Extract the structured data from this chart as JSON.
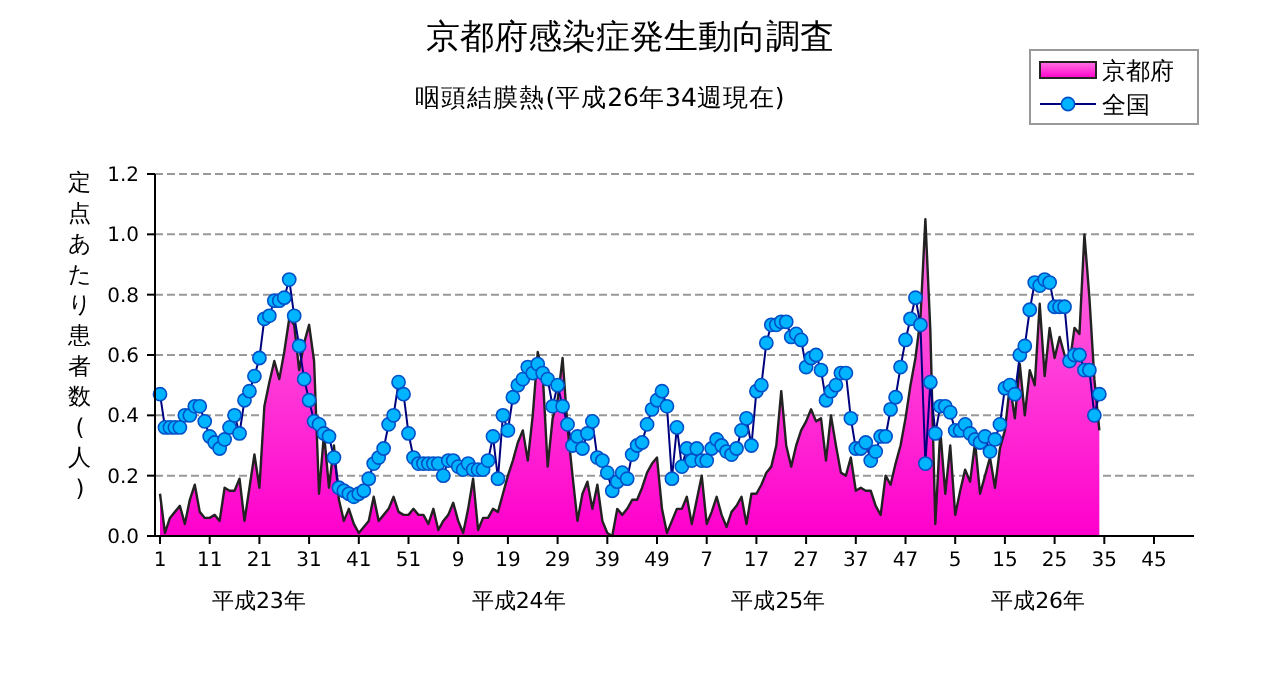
{
  "chart_data": {
    "type": "line",
    "title": "京都府感染症発生動向調査",
    "subtitle": "咽頭結膜熱(平成26年34週現在)",
    "ylabel": "定点あたり患者数(人)",
    "categories": [
      "1",
      null,
      null,
      null,
      null,
      null,
      null,
      null,
      null,
      null,
      "11",
      null,
      null,
      null,
      null,
      null,
      null,
      null,
      null,
      null,
      "21",
      null,
      null,
      null,
      null,
      null,
      null,
      null,
      null,
      null,
      "31",
      null,
      null,
      null,
      null,
      null,
      null,
      null,
      null,
      null,
      "41",
      null,
      null,
      null,
      null,
      null,
      null,
      null,
      null,
      null,
      "51",
      null,
      null,
      null,
      null,
      null,
      null,
      null,
      null,
      null,
      "9",
      null,
      null,
      null,
      null,
      null,
      null,
      null,
      null,
      null,
      "19",
      null,
      null,
      null,
      null,
      null,
      null,
      null,
      null,
      null,
      "29",
      null,
      null,
      null,
      null,
      null,
      null,
      null,
      null,
      null,
      "39",
      null,
      null,
      null,
      null,
      null,
      null,
      null,
      null,
      null,
      "49",
      null,
      null,
      null,
      null,
      null,
      null,
      null,
      null,
      null,
      "7",
      null,
      null,
      null,
      null,
      null,
      null,
      null,
      null,
      null,
      "17",
      null,
      null,
      null,
      null,
      null,
      null,
      null,
      null,
      null,
      "27",
      null,
      null,
      null,
      null,
      null,
      null,
      null,
      null,
      null,
      "37",
      null,
      null,
      null,
      null,
      null,
      null,
      null,
      null,
      null,
      "47",
      null,
      null,
      null,
      null,
      null,
      null,
      null,
      null,
      null,
      "5",
      null,
      null,
      null,
      null,
      null,
      null,
      null,
      null,
      null,
      "15",
      null,
      null,
      null,
      null,
      null,
      null,
      null,
      null,
      null,
      "25",
      null,
      null,
      null,
      null,
      null,
      null,
      null,
      null,
      null,
      "35",
      null,
      null,
      null,
      null,
      null,
      null,
      null,
      null,
      null,
      "45",
      null,
      null,
      null,
      null,
      null,
      null,
      null
    ],
    "ylim": [
      0,
      1.2
    ],
    "yticks": [
      {
        "value": 0,
        "label": "0.0"
      },
      {
        "value": 0.2,
        "label": "0.2"
      },
      {
        "value": 0.4,
        "label": "0.4"
      },
      {
        "value": 0.6,
        "label": "0.6"
      },
      {
        "value": 0.8,
        "label": "0.8"
      },
      {
        "value": 1,
        "label": "1.0"
      },
      {
        "value": 1.2,
        "label": "1.2"
      }
    ],
    "grid": "y",
    "legend": "top right",
    "series": [
      {
        "name": "京都府",
        "type": "area",
        "color": "#ff00cc",
        "values": [
          0.14,
          0.01,
          0.06,
          0.08,
          0.1,
          0.04,
          0.12,
          0.17,
          0.08,
          0.06,
          0.06,
          0.07,
          0.05,
          0.16,
          0.15,
          0.15,
          0.19,
          0.05,
          0.16,
          0.27,
          0.16,
          0.43,
          0.51,
          0.58,
          0.52,
          0.61,
          0.72,
          0.7,
          0.55,
          0.64,
          0.7,
          0.58,
          0.14,
          0.34,
          0.16,
          0.3,
          0.12,
          0.05,
          0.09,
          0.04,
          0.01,
          0.03,
          0.05,
          0.13,
          0.05,
          0.07,
          0.09,
          0.13,
          0.08,
          0.07,
          0.07,
          0.09,
          0.07,
          0.07,
          0.04,
          0.09,
          0.02,
          0.05,
          0.07,
          0.11,
          0.05,
          0.01,
          0.09,
          0.19,
          0.02,
          0.06,
          0.06,
          0.09,
          0.08,
          0.14,
          0.2,
          0.25,
          0.31,
          0.35,
          0.25,
          0.4,
          0.61,
          0.54,
          0.23,
          0.39,
          0.45,
          0.59,
          0.36,
          0.2,
          0.05,
          0.14,
          0.18,
          0.09,
          0.17,
          0.05,
          0.01,
          0.0,
          0.09,
          0.07,
          0.09,
          0.12,
          0.12,
          0.16,
          0.21,
          0.24,
          0.26,
          0.09,
          0.01,
          0.05,
          0.09,
          0.09,
          0.13,
          0.04,
          0.12,
          0.2,
          0.04,
          0.08,
          0.13,
          0.07,
          0.03,
          0.08,
          0.1,
          0.13,
          0.04,
          0.14,
          0.14,
          0.17,
          0.21,
          0.23,
          0.3,
          0.48,
          0.3,
          0.23,
          0.3,
          0.35,
          0.38,
          0.42,
          0.38,
          0.39,
          0.25,
          0.4,
          0.3,
          0.21,
          0.2,
          0.26,
          0.15,
          0.16,
          0.15,
          0.15,
          0.1,
          0.07,
          0.2,
          0.17,
          0.24,
          0.3,
          0.39,
          0.5,
          0.59,
          0.72,
          1.05,
          0.68,
          0.04,
          0.35,
          0.14,
          0.3,
          0.07,
          0.15,
          0.22,
          0.18,
          0.31,
          0.14,
          0.2,
          0.26,
          0.16,
          0.29,
          0.35,
          0.5,
          0.39,
          0.57,
          0.4,
          0.55,
          0.5,
          0.77,
          0.53,
          0.69,
          0.59,
          0.66,
          0.6,
          0.57,
          0.69,
          0.67,
          1.0,
          0.79,
          0.52,
          0.35,
          null,
          null,
          null,
          null,
          null,
          null,
          null,
          null,
          null,
          null,
          null,
          null,
          null,
          null,
          null,
          null,
          null,
          null
        ]
      },
      {
        "name": "全国",
        "marker": "circle",
        "color": "#00b4ff",
        "values": [
          0.47,
          0.36,
          0.36,
          0.36,
          0.36,
          0.4,
          0.4,
          0.43,
          0.43,
          0.38,
          0.33,
          0.31,
          0.29,
          0.32,
          0.36,
          0.4,
          0.34,
          0.45,
          0.48,
          0.53,
          0.59,
          0.72,
          0.73,
          0.78,
          0.78,
          0.79,
          0.85,
          0.73,
          0.63,
          0.52,
          0.45,
          0.38,
          0.37,
          0.34,
          0.33,
          0.26,
          0.16,
          0.15,
          0.14,
          0.13,
          0.14,
          0.15,
          0.19,
          0.24,
          0.26,
          0.29,
          0.37,
          0.4,
          0.51,
          0.47,
          0.34,
          0.26,
          0.24,
          0.24,
          0.24,
          0.24,
          0.24,
          0.2,
          0.25,
          0.25,
          0.23,
          0.22,
          0.24,
          0.22,
          0.22,
          0.22,
          0.25,
          0.33,
          0.19,
          0.4,
          0.35,
          0.46,
          0.5,
          0.52,
          0.56,
          0.54,
          0.57,
          0.54,
          0.52,
          0.43,
          0.5,
          0.43,
          0.37,
          0.3,
          0.33,
          0.29,
          0.34,
          0.38,
          0.26,
          0.25,
          0.21,
          0.15,
          0.18,
          0.21,
          0.19,
          0.27,
          0.3,
          0.31,
          0.37,
          0.42,
          0.45,
          0.48,
          0.43,
          0.19,
          0.36,
          0.23,
          0.29,
          0.25,
          0.29,
          0.25,
          0.25,
          0.29,
          0.32,
          0.3,
          0.28,
          0.27,
          0.29,
          0.35,
          0.39,
          0.3,
          0.48,
          0.5,
          0.64,
          0.7,
          0.7,
          0.71,
          0.71,
          0.66,
          0.67,
          0.65,
          0.56,
          0.59,
          0.6,
          0.55,
          0.45,
          0.48,
          0.5,
          0.54,
          0.54,
          0.39,
          0.29,
          0.29,
          0.31,
          0.25,
          0.28,
          0.33,
          0.33,
          0.42,
          0.46,
          0.56,
          0.65,
          0.72,
          0.79,
          0.7,
          0.24,
          0.51,
          0.34,
          0.43,
          0.43,
          0.41,
          0.35,
          0.35,
          0.37,
          0.34,
          0.32,
          0.31,
          0.33,
          0.28,
          0.32,
          0.37,
          0.49,
          0.5,
          0.47,
          0.6,
          0.63,
          0.75,
          0.84,
          0.83,
          0.85,
          0.84,
          0.76,
          0.76,
          0.76,
          0.58,
          0.6,
          0.6,
          0.55,
          0.55,
          0.4,
          0.47,
          null,
          null,
          null,
          null,
          null,
          null,
          null,
          null,
          null,
          null,
          null,
          null,
          null,
          null,
          null,
          null,
          null,
          null
        ]
      }
    ],
    "annotations": [
      "平成23年",
      "平成24年",
      "平成25年",
      "平成26年"
    ]
  }
}
